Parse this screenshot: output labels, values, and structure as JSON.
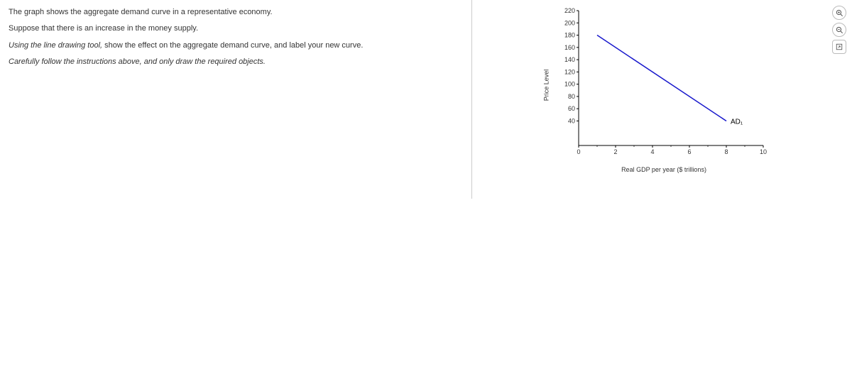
{
  "instructions": {
    "line1": "The graph shows the aggregate demand curve in a representative economy.",
    "line2": "Suppose that there is an increase in the money supply.",
    "line3_prefix_italic": "Using the line drawing tool,",
    "line3_rest": " show the effect on the aggregate demand curve, and label your new curve.",
    "line4_italic": "Carefully follow the instructions above, and only draw the required objects."
  },
  "chart": {
    "type": "line",
    "y_label": "Price Level",
    "x_label": "Real GDP per year ($ trillions)",
    "xlim": [
      0,
      10
    ],
    "ylim": [
      0,
      220
    ],
    "x_ticks": [
      0,
      2,
      4,
      6,
      8,
      10
    ],
    "y_ticks": [
      40,
      60,
      80,
      100,
      120,
      140,
      160,
      180,
      200,
      220
    ],
    "line_color": "#1818cc",
    "line": {
      "x1": 1,
      "y1": 180,
      "x2": 8,
      "y2": 40
    },
    "curve_label": "AD₁",
    "background_color": "#ffffff",
    "axis_color": "#000000"
  },
  "toolbar": {
    "zoom_in": "zoom-in",
    "zoom_out": "zoom-out",
    "expand": "expand"
  }
}
